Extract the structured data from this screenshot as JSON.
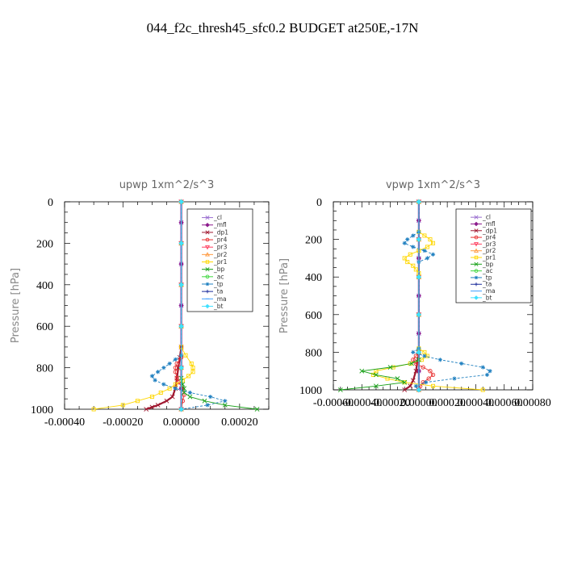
{
  "page_title": "044_f2c_thresh45_sfc0.2  BUDGET at250E,-17N",
  "legend_entries": [
    {
      "name": "_cl",
      "color": "#9a6fd0",
      "marker": "cross"
    },
    {
      "name": "_mfl",
      "color": "#8c1a8c",
      "marker": "diamond"
    },
    {
      "name": "_dp1",
      "color": "#a01830",
      "marker": "cross"
    },
    {
      "name": "_pr4",
      "color": "#e83030",
      "marker": "circle"
    },
    {
      "name": "_pr3",
      "color": "#ff4060",
      "marker": "triangle-down"
    },
    {
      "name": "_pr2",
      "color": "#ff9a40",
      "marker": "triangle-up"
    },
    {
      "name": "_pr1",
      "color": "#ffd700",
      "marker": "square"
    },
    {
      "name": "_bp",
      "color": "#18a018",
      "marker": "cross"
    },
    {
      "name": "_ac",
      "color": "#40d840",
      "marker": "circle"
    },
    {
      "name": "_tp",
      "color": "#2080c0",
      "marker": "star"
    },
    {
      "name": "_ta",
      "color": "#1a2a9a",
      "marker": "plus"
    },
    {
      "name": "_ma",
      "color": "#40a0ff",
      "marker": "dash"
    },
    {
      "name": "_bt",
      "color": "#40e0ff",
      "marker": "diamond"
    }
  ],
  "chart_data": [
    {
      "type": "line",
      "title": "upwp   1xm^2/s^3",
      "xlabel": "",
      "ylabel": "Pressure [hPa]",
      "xlim": [
        -0.0004,
        0.0003
      ],
      "ylim": [
        1000,
        0
      ],
      "xticks": [
        "-0.00040",
        "-0.00020",
        "0.00000",
        "0.00020"
      ],
      "xtick_values": [
        -0.0004,
        -0.0002,
        0.0,
        0.0002
      ],
      "yticks": [
        "0",
        "200",
        "400",
        "600",
        "800",
        "1000"
      ],
      "ytick_values": [
        0,
        200,
        400,
        600,
        800,
        1000
      ],
      "legend_position": "top-right",
      "series": [
        {
          "name": "_cl",
          "y": [
            0,
            100,
            200,
            300,
            400,
            500,
            600,
            700,
            800,
            900,
            1000
          ],
          "x": [
            0,
            0,
            0,
            0,
            0,
            0,
            0,
            0,
            0,
            0,
            0
          ]
        },
        {
          "name": "_mfl",
          "y": [
            0,
            100,
            200,
            300,
            400,
            500,
            600,
            700,
            800,
            900,
            1000
          ],
          "x": [
            0,
            0,
            0,
            0,
            0,
            0,
            0,
            0,
            0,
            0,
            0
          ]
        },
        {
          "name": "_dp1",
          "y": [
            700,
            750,
            800,
            850,
            900,
            940,
            960,
            980,
            990,
            1000
          ],
          "x": [
            0,
            -5e-06,
            -1e-05,
            -1.5e-05,
            -2e-05,
            -3e-05,
            -5e-05,
            -8e-05,
            -0.0001,
            -0.00012
          ]
        },
        {
          "name": "_pr4",
          "y": [
            750,
            780,
            800,
            820,
            850,
            870,
            900,
            930,
            960,
            1000
          ],
          "x": [
            0,
            -1.5e-05,
            -2e-05,
            -2e-05,
            -1.5e-05,
            -1e-05,
            5e-06,
            1e-05,
            5e-06,
            0
          ]
        },
        {
          "name": "_pr3",
          "y": [
            0,
            200,
            400,
            600,
            800,
            1000
          ],
          "x": [
            0,
            0,
            0,
            0,
            0,
            0
          ]
        },
        {
          "name": "_pr2",
          "y": [
            0,
            200,
            400,
            600,
            800,
            1000
          ],
          "x": [
            0,
            0,
            0,
            0,
            0,
            0
          ]
        },
        {
          "name": "_pr1",
          "y": [
            700,
            740,
            780,
            800,
            820,
            840,
            860,
            880,
            900,
            920,
            940,
            960,
            980,
            1000
          ],
          "x": [
            0,
            1.5e-05,
            3.5e-05,
            4e-05,
            4e-05,
            2.5e-05,
            5e-06,
            -2e-05,
            -4e-05,
            -7e-05,
            -0.0001,
            -0.00015,
            -0.0002,
            -0.0003
          ]
        },
        {
          "name": "_bp",
          "y": [
            850,
            880,
            900,
            920,
            940,
            960,
            980,
            1000
          ],
          "x": [
            0,
            5e-06,
            1e-05,
            1e-05,
            3e-05,
            8e-05,
            0.00015,
            0.00026
          ]
        },
        {
          "name": "_ac",
          "y": [
            0,
            200,
            400,
            600,
            800,
            1000
          ],
          "x": [
            0,
            0,
            0,
            0,
            0,
            0
          ]
        },
        {
          "name": "_tp",
          "y": [
            740,
            760,
            780,
            800,
            820,
            840,
            860,
            880,
            900,
            920,
            940,
            960,
            980,
            1000
          ],
          "x": [
            0,
            -2e-05,
            -4e-05,
            -6e-05,
            -8e-05,
            -0.0001,
            -9e-05,
            -6e-05,
            -2e-05,
            3e-05,
            0.0001,
            0.00015,
            9e-05,
            0
          ]
        },
        {
          "name": "_ta",
          "y": [
            0,
            200,
            400,
            600,
            800,
            1000
          ],
          "x": [
            0,
            0,
            0,
            0,
            0,
            0
          ]
        },
        {
          "name": "_ma",
          "y": [
            0,
            200,
            400,
            600,
            800,
            1000
          ],
          "x": [
            0,
            0,
            0,
            0,
            0,
            0
          ]
        },
        {
          "name": "_bt",
          "y": [
            0,
            200,
            400,
            600,
            800,
            1000
          ],
          "x": [
            0,
            0,
            0,
            0,
            0,
            0
          ]
        }
      ]
    },
    {
      "type": "line",
      "title": "vpwp   1xm^2/s^3",
      "xlabel": "",
      "ylabel": "Pressure [hPa]",
      "xlim": [
        -0.0006,
        0.0008
      ],
      "ylim": [
        1000,
        0
      ],
      "xticks": [
        "-0.00060",
        "-0.00040",
        "-0.00020",
        "0.00000",
        "0.00020",
        "0.00040",
        "0.00060",
        "0.00080"
      ],
      "xtick_values": [
        -0.0006,
        -0.0004,
        -0.0002,
        0.0,
        0.0002,
        0.0004,
        0.0006,
        0.0008
      ],
      "yticks": [
        "0",
        "200",
        "400",
        "600",
        "800",
        "1000"
      ],
      "ytick_values": [
        0,
        200,
        400,
        600,
        800,
        1000
      ],
      "legend_position": "top-right",
      "series": [
        {
          "name": "_cl",
          "y": [
            0,
            100,
            200,
            300,
            400,
            500,
            600,
            700,
            800,
            900,
            1000
          ],
          "x": [
            0,
            0,
            0,
            0,
            0,
            0,
            0,
            0,
            0,
            0,
            0
          ]
        },
        {
          "name": "_mfl",
          "y": [
            0,
            100,
            200,
            300,
            400,
            500,
            600,
            700,
            800,
            900,
            1000
          ],
          "x": [
            0,
            0,
            0,
            0,
            0,
            0,
            0,
            0,
            0,
            0,
            0
          ]
        },
        {
          "name": "_dp1",
          "y": [
            800,
            850,
            900,
            950,
            980,
            1000
          ],
          "x": [
            0,
            -1e-05,
            -2e-05,
            -4e-05,
            -6e-05,
            -0.0001
          ]
        },
        {
          "name": "_pr4",
          "y": [
            800,
            820,
            840,
            860,
            880,
            900,
            920,
            940,
            960,
            980,
            1000
          ],
          "x": [
            0,
            -2e-05,
            -4e-05,
            -2e-05,
            3e-05,
            8e-05,
            0.0001,
            7e-05,
            3e-05,
            1e-05,
            0
          ]
        },
        {
          "name": "_pr3",
          "y": [
            0,
            200,
            400,
            600,
            800,
            1000
          ],
          "x": [
            0,
            0,
            0,
            0,
            0,
            0
          ]
        },
        {
          "name": "_pr2",
          "y": [
            0,
            200,
            400,
            600,
            800,
            1000
          ],
          "x": [
            0,
            0,
            0,
            0,
            0,
            0
          ]
        },
        {
          "name": "_pr1",
          "y": [
            160,
            180,
            200,
            220,
            240,
            260,
            280,
            300,
            320,
            340,
            360,
            380,
            780,
            800,
            820,
            840,
            860,
            880,
            900,
            920,
            940,
            960,
            980,
            1000
          ],
          "x": [
            0,
            4e-05,
            8e-05,
            0.0001,
            6e-05,
            0,
            -6e-05,
            -0.0001,
            -8e-05,
            -4e-05,
            -2e-05,
            0,
            0,
            4e-05,
            6e-05,
            2e-05,
            -6e-05,
            -0.00018,
            -0.0003,
            -0.00032,
            -0.00022,
            -0.0001,
            0.0001,
            0.00045
          ]
        },
        {
          "name": "_bp",
          "y": [
            840,
            860,
            880,
            900,
            920,
            940,
            960,
            980,
            1000
          ],
          "x": [
            0,
            -5e-05,
            -0.0002,
            -0.0004,
            -0.0003,
            -0.00015,
            -0.0001,
            -0.0003,
            -0.00055
          ]
        },
        {
          "name": "_ac",
          "y": [
            0,
            200,
            400,
            600,
            800,
            1000
          ],
          "x": [
            0,
            0,
            0,
            0,
            0,
            0
          ]
        },
        {
          "name": "_tp",
          "y": [
            160,
            180,
            200,
            220,
            240,
            260,
            280,
            300,
            320,
            780,
            800,
            820,
            840,
            860,
            880,
            900,
            920,
            940,
            960,
            980,
            1000
          ],
          "x": [
            0,
            -4e-05,
            -8e-05,
            -0.0001,
            -4e-05,
            4e-05,
            0.0001,
            6e-05,
            0,
            0,
            -4e-05,
            4e-05,
            0.00015,
            0.0003,
            0.00045,
            0.0005,
            0.00048,
            0.00025,
            5e-05,
            -2e-05,
            0
          ]
        },
        {
          "name": "_ta",
          "y": [
            0,
            200,
            400,
            600,
            800,
            1000
          ],
          "x": [
            0,
            0,
            0,
            0,
            0,
            0
          ]
        },
        {
          "name": "_ma",
          "y": [
            0,
            200,
            400,
            600,
            800,
            1000
          ],
          "x": [
            0,
            0,
            0,
            0,
            0,
            0
          ]
        },
        {
          "name": "_bt",
          "y": [
            0,
            200,
            400,
            600,
            800,
            1000
          ],
          "x": [
            0,
            0,
            0,
            0,
            0,
            0
          ]
        }
      ]
    }
  ]
}
